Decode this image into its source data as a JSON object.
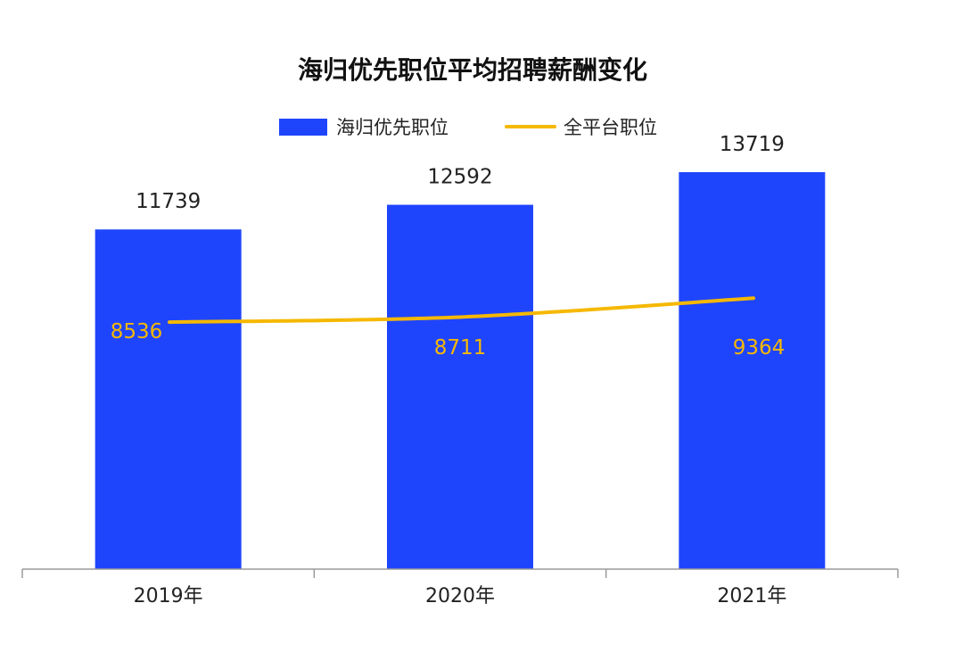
{
  "chart_data": {
    "type": "bar",
    "title": "海归优先职位平均招聘薪酬变化",
    "categories": [
      "2019年",
      "2020年",
      "2021年"
    ],
    "series": [
      {
        "name": "海归优先职位",
        "kind": "bar",
        "color": "#1f45fc",
        "values": [
          11739,
          12592,
          13719
        ]
      },
      {
        "name": "全平台职位",
        "kind": "line",
        "color": "#f5b800",
        "values": [
          8536,
          8711,
          9364
        ]
      }
    ],
    "ylim": [
      0,
      13719
    ],
    "legend": "top-center",
    "grid": false,
    "xlabel": "",
    "ylabel": ""
  }
}
